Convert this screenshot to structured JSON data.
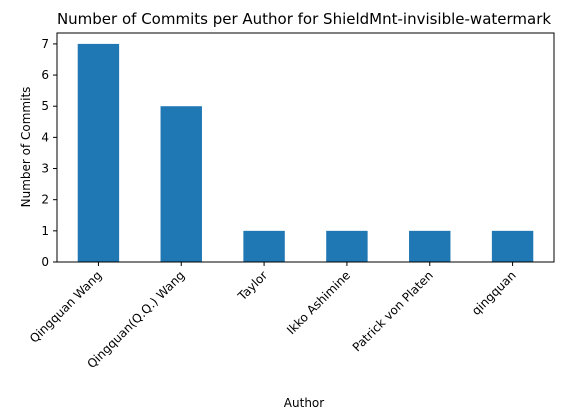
{
  "chart_data": {
    "type": "bar",
    "title": "Number of Commits per Author for ShieldMnt-invisible-watermark",
    "xlabel": "Author",
    "ylabel": "Number of Commits",
    "categories": [
      "Qingquan Wang",
      "Qingquan(Q.Q.) Wang",
      "Taylor",
      "Ikko Ashimine",
      "Patrick von Platen",
      "qingquan"
    ],
    "values": [
      7,
      5,
      1,
      1,
      1,
      1
    ],
    "ylim": [
      0,
      7.35
    ],
    "yticks": [
      0,
      1,
      2,
      3,
      4,
      5,
      6,
      7
    ],
    "grid": false,
    "bar_color": "#1f77b4",
    "x_tick_rotation": "45°"
  }
}
